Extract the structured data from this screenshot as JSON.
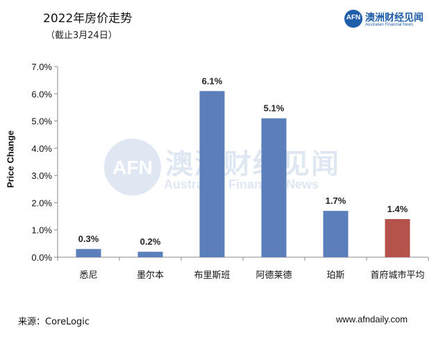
{
  "header": {
    "title": "2022年房价走势",
    "subtitle": "（截止3月24日）"
  },
  "logo": {
    "mark": "AFN",
    "name_cn": "澳洲财经见闻",
    "name_en": "Australian Financial News",
    "color": "#1f5ea8"
  },
  "footer": {
    "source": "来源：CoreLogic",
    "site": "www.afndaily.com"
  },
  "colors": {
    "bar_default": "#5b7fba",
    "bar_highlight": "#b5524b"
  },
  "chart_data": {
    "type": "bar",
    "title": "2022年房价走势",
    "ylabel": "Price Change",
    "categories": [
      "悉尼",
      "墨尔本",
      "布里斯班",
      "阿德莱德",
      "珀斯",
      "首府城市平均"
    ],
    "values": [
      0.3,
      0.2,
      6.1,
      5.1,
      1.7,
      1.4
    ],
    "value_labels": [
      "0.3%",
      "0.2%",
      "6.1%",
      "5.1%",
      "1.7%",
      "1.4%"
    ],
    "highlight_index": 5,
    "ylim": [
      0,
      7
    ],
    "yticks": [
      "0.0%",
      "1.0%",
      "2.0%",
      "3.0%",
      "4.0%",
      "5.0%",
      "6.0%",
      "7.0%"
    ],
    "grid": false,
    "legend": "none"
  }
}
